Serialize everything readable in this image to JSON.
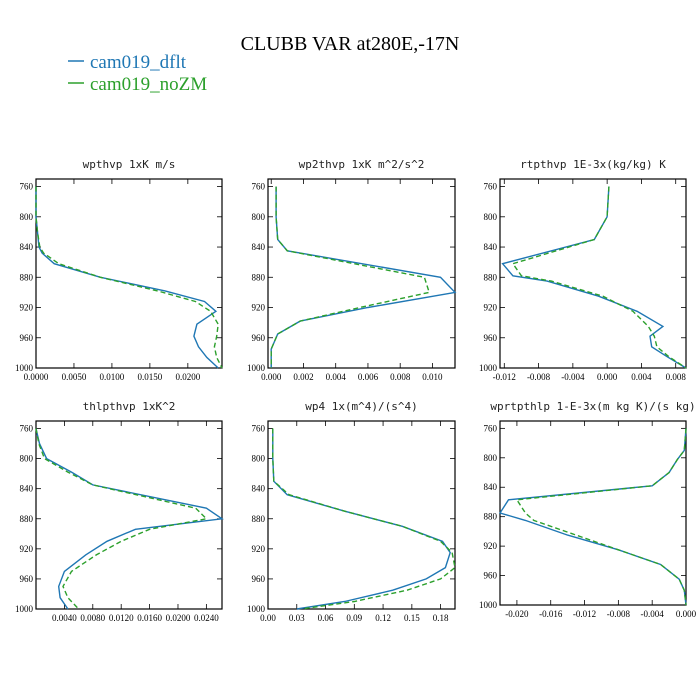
{
  "figure": {
    "title": "CLUBB VAR at280E,-17N",
    "legend": [
      {
        "label": "cam019_dflt",
        "color": "#1f77b4",
        "dash": "solid"
      },
      {
        "label": "cam019_noZM",
        "color": "#2ca02c",
        "dash": "dashed"
      }
    ]
  },
  "chart_data": [
    {
      "type": "line",
      "title": "wpthvp  1xK m/s",
      "xlim": [
        0,
        0.0245
      ],
      "ylim": [
        1000,
        750
      ],
      "xticks": [
        "0.0000",
        "0.0050",
        "0.0100",
        "0.0150",
        "0.0200"
      ],
      "xtick_values": [
        0,
        0.005,
        0.01,
        0.015,
        0.02
      ],
      "yticks": [
        "760",
        "800",
        "840",
        "880",
        "920",
        "960",
        "1000"
      ],
      "ytick_values": [
        760,
        800,
        840,
        880,
        920,
        960,
        1000
      ],
      "y": [
        760,
        800,
        820,
        840,
        848,
        862,
        880,
        898,
        912,
        925,
        942,
        958,
        972,
        986,
        1000
      ],
      "series": [
        {
          "name": "cam019_dflt",
          "color": "#1f77b4",
          "values": [
            0.0,
            0.0,
            0.0002,
            0.0004,
            0.0008,
            0.0024,
            0.0085,
            0.017,
            0.0222,
            0.0237,
            0.0212,
            0.0208,
            0.0214,
            0.0225,
            0.024
          ]
        },
        {
          "name": "cam019_noZM",
          "color": "#2ca02c",
          "values": [
            0.0,
            0.0,
            0.0002,
            0.0005,
            0.001,
            0.003,
            0.0085,
            0.016,
            0.021,
            0.023,
            0.024,
            0.0238,
            0.0235,
            0.0238,
            0.0245
          ]
        }
      ]
    },
    {
      "type": "line",
      "title": "wp2thvp  1xK m^2/s^2",
      "xlim": [
        -0.0002,
        0.0114
      ],
      "ylim": [
        1000,
        750
      ],
      "xticks": [
        "0.000",
        "0.002",
        "0.004",
        "0.006",
        "0.008",
        "0.010"
      ],
      "xtick_values": [
        0,
        0.002,
        0.004,
        0.006,
        0.008,
        0.01
      ],
      "yticks": [
        "760",
        "800",
        "840",
        "880",
        "920",
        "960",
        "1000"
      ],
      "ytick_values": [
        760,
        800,
        840,
        880,
        920,
        960,
        1000
      ],
      "y": [
        760,
        800,
        830,
        845,
        880,
        900,
        920,
        938,
        955,
        975,
        990,
        1000
      ],
      "series": [
        {
          "name": "cam019_dflt",
          "color": "#1f77b4",
          "values": [
            0.0003,
            0.0003,
            0.0004,
            0.001,
            0.0105,
            0.0114,
            0.006,
            0.0018,
            0.0004,
            0.0,
            0.0,
            0.0
          ]
        },
        {
          "name": "cam019_noZM",
          "color": "#2ca02c",
          "values": [
            0.0003,
            0.0003,
            0.0004,
            0.001,
            0.0095,
            0.0098,
            0.0055,
            0.0018,
            0.0004,
            0.0,
            0.0,
            0.0
          ]
        }
      ]
    },
    {
      "type": "line",
      "title": "rtpthvp  1E-3x(kg/kg) K",
      "xlim": [
        -0.0125,
        0.0092
      ],
      "ylim": [
        1000,
        750
      ],
      "xticks": [
        "-0.012",
        "-0.008",
        "-0.004",
        "0.000",
        "0.004",
        "0.008"
      ],
      "xtick_values": [
        -0.012,
        -0.008,
        -0.004,
        0,
        0.004,
        0.008
      ],
      "yticks": [
        "760",
        "800",
        "840",
        "880",
        "920",
        "960",
        "1000"
      ],
      "ytick_values": [
        760,
        800,
        840,
        880,
        920,
        960,
        1000
      ],
      "y": [
        760,
        800,
        830,
        862,
        878,
        885,
        905,
        925,
        945,
        958,
        972,
        985,
        1000
      ],
      "series": [
        {
          "name": "cam019_dflt",
          "color": "#1f77b4",
          "values": [
            0.0002,
            0.0,
            -0.0015,
            -0.0122,
            -0.011,
            -0.007,
            -0.001,
            0.0035,
            0.0065,
            0.005,
            0.0052,
            0.007,
            0.0092
          ]
        },
        {
          "name": "cam019_noZM",
          "color": "#2ca02c",
          "values": [
            0.0002,
            0.0,
            -0.0015,
            -0.011,
            -0.01,
            -0.0065,
            -0.0005,
            0.003,
            0.0048,
            0.0055,
            0.0058,
            0.0072,
            0.0092
          ]
        }
      ]
    },
    {
      "type": "line",
      "title": "thlpthvp  1xK^2",
      "xlim": [
        0,
        0.0262
      ],
      "ylim": [
        1000,
        750
      ],
      "xticks": [
        "0.0040",
        "0.0080",
        "0.0120",
        "0.0160",
        "0.0200",
        "0.0240"
      ],
      "xtick_values": [
        0.004,
        0.008,
        0.012,
        0.016,
        0.02,
        0.024
      ],
      "yticks": [
        "760",
        "800",
        "840",
        "880",
        "920",
        "960",
        "1000"
      ],
      "ytick_values": [
        760,
        800,
        840,
        880,
        920,
        960,
        1000
      ],
      "y": [
        760,
        780,
        800,
        818,
        835,
        866,
        880,
        894,
        910,
        928,
        950,
        970,
        985,
        1000
      ],
      "series": [
        {
          "name": "cam019_dflt",
          "color": "#1f77b4",
          "values": [
            0.0,
            0.0005,
            0.0015,
            0.005,
            0.008,
            0.024,
            0.0262,
            0.014,
            0.01,
            0.007,
            0.004,
            0.0032,
            0.0034,
            0.0045
          ]
        },
        {
          "name": "cam019_noZM",
          "color": "#2ca02c",
          "values": [
            0.0,
            0.0004,
            0.0012,
            0.0045,
            0.008,
            0.0225,
            0.024,
            0.016,
            0.012,
            0.0085,
            0.005,
            0.0038,
            0.0045,
            0.006
          ]
        }
      ]
    },
    {
      "type": "line",
      "title": "wp4  1x(m^4)/(s^4)",
      "xlim": [
        0,
        0.195
      ],
      "ylim": [
        1000,
        750
      ],
      "xticks": [
        "0.00",
        "0.03",
        "0.06",
        "0.09",
        "0.12",
        "0.15",
        "0.18"
      ],
      "xtick_values": [
        0,
        0.03,
        0.06,
        0.09,
        0.12,
        0.15,
        0.18
      ],
      "yticks": [
        "760",
        "800",
        "840",
        "880",
        "920",
        "960",
        "1000"
      ],
      "ytick_values": [
        760,
        800,
        840,
        880,
        920,
        960,
        1000
      ],
      "y": [
        760,
        800,
        830,
        848,
        870,
        890,
        910,
        925,
        945,
        960,
        975,
        990,
        1000
      ],
      "series": [
        {
          "name": "cam019_dflt",
          "color": "#1f77b4",
          "values": [
            0.005,
            0.005,
            0.006,
            0.02,
            0.08,
            0.14,
            0.182,
            0.19,
            0.185,
            0.165,
            0.13,
            0.08,
            0.03
          ]
        },
        {
          "name": "cam019_noZM",
          "color": "#2ca02c",
          "values": [
            0.005,
            0.005,
            0.006,
            0.022,
            0.08,
            0.14,
            0.18,
            0.192,
            0.195,
            0.18,
            0.145,
            0.09,
            0.035
          ]
        }
      ]
    },
    {
      "type": "line",
      "title": "wprtpthlp  1-E-3x(m kg K)/(s kg)",
      "xlim": [
        -0.022,
        0.0
      ],
      "ylim": [
        1000,
        750
      ],
      "xticks": [
        "-0.020",
        "-0.016",
        "-0.012",
        "-0.008",
        "-0.004",
        "0.000"
      ],
      "xtick_values": [
        -0.02,
        -0.016,
        -0.012,
        -0.008,
        -0.004,
        0
      ],
      "yticks": [
        "760",
        "800",
        "840",
        "880",
        "920",
        "960",
        "1000"
      ],
      "ytick_values": [
        760,
        800,
        840,
        880,
        920,
        960,
        1000
      ],
      "y": [
        760,
        790,
        802,
        820,
        838,
        857,
        875,
        885,
        905,
        925,
        945,
        965,
        980,
        1000
      ],
      "series": [
        {
          "name": "cam019_dflt",
          "color": "#1f77b4",
          "values": [
            0.0,
            -0.0002,
            -0.001,
            -0.002,
            -0.004,
            -0.021,
            -0.022,
            -0.019,
            -0.014,
            -0.008,
            -0.003,
            -0.0008,
            -0.0002,
            0.0
          ]
        },
        {
          "name": "cam019_noZM",
          "color": "#2ca02c",
          "values": [
            0.0,
            -0.0002,
            -0.001,
            -0.002,
            -0.004,
            -0.02,
            -0.019,
            -0.018,
            -0.013,
            -0.008,
            -0.003,
            -0.0008,
            -0.0002,
            0.0
          ]
        }
      ]
    }
  ]
}
